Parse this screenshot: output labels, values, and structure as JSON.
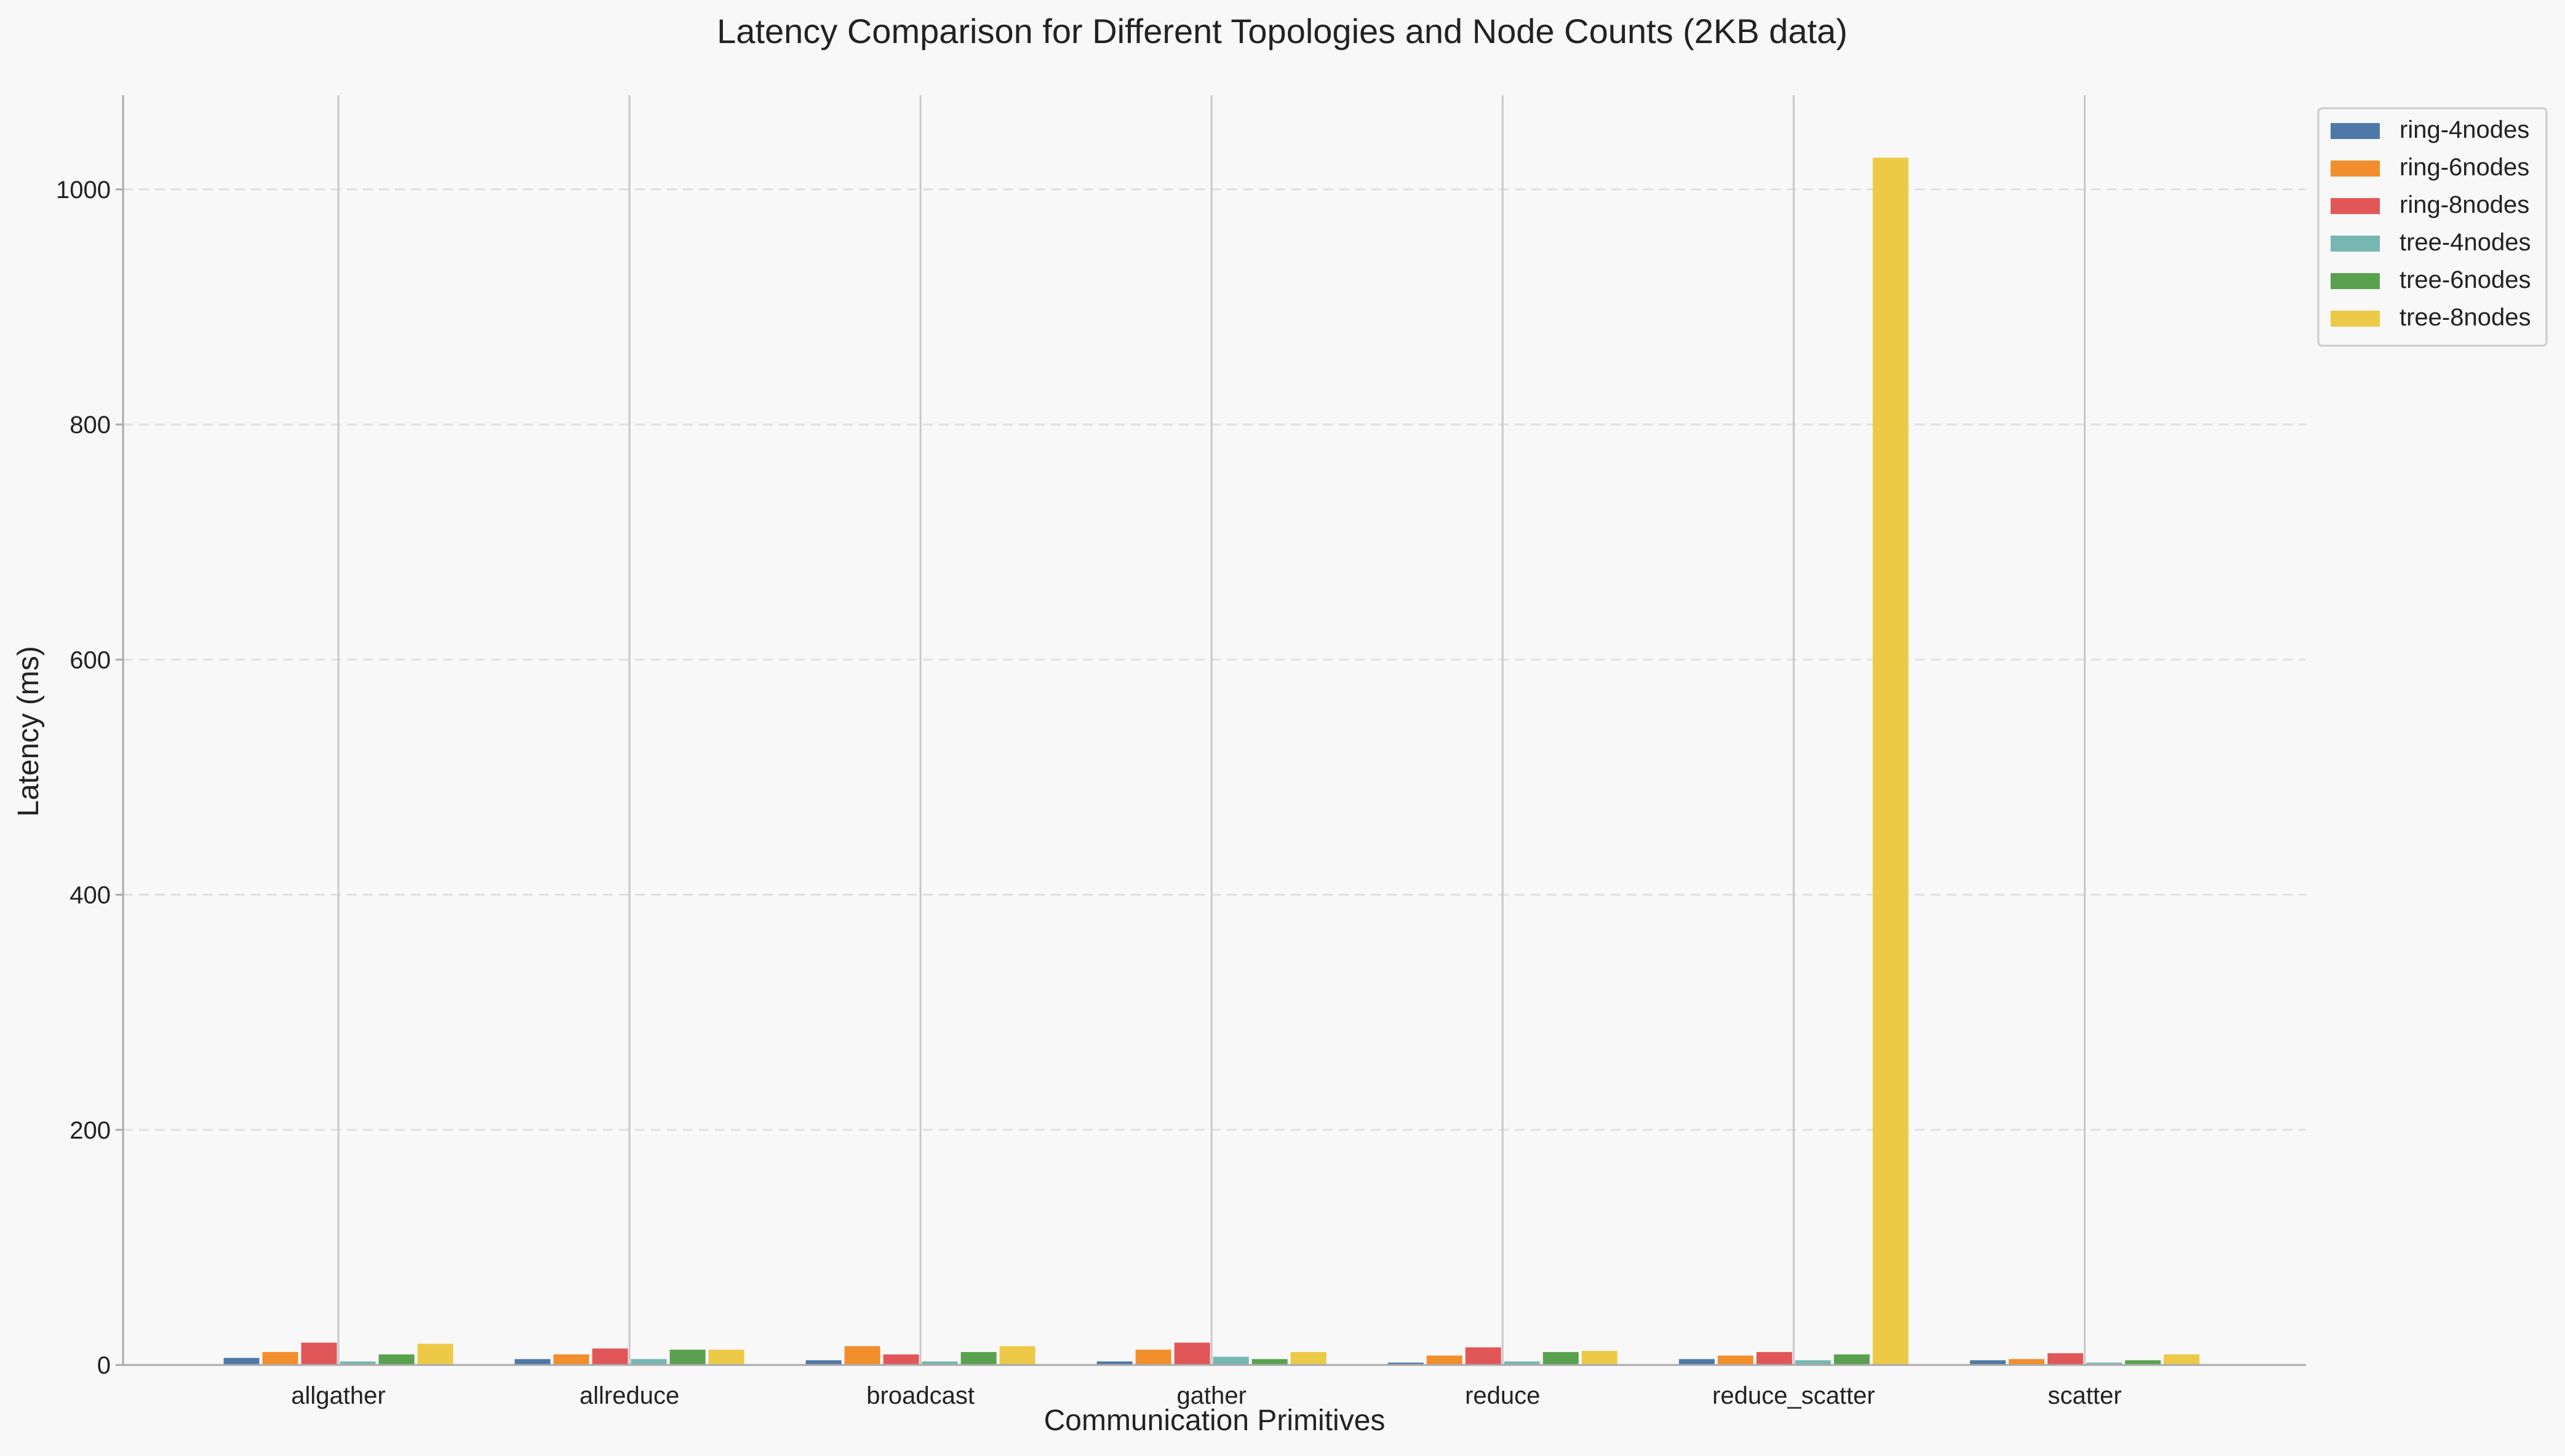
{
  "chart_data": {
    "type": "bar",
    "title": "Latency Comparison for Different Topologies and Node Counts (2KB data)",
    "xlabel": "Communication Primitives",
    "ylabel": "Latency (ms)",
    "categories": [
      "allgather",
      "allreduce",
      "broadcast",
      "gather",
      "reduce",
      "reduce_scatter",
      "scatter"
    ],
    "ylim": [
      0,
      1080
    ],
    "yticks": [
      0,
      200,
      400,
      600,
      800,
      1000
    ],
    "grid": "y-dashed",
    "legend_position": "top-right",
    "series": [
      {
        "name": "ring-4nodes",
        "color": "#4e79a7",
        "values": [
          6,
          5,
          4,
          3,
          2,
          5,
          4
        ]
      },
      {
        "name": "ring-6nodes",
        "color": "#f28e2b",
        "values": [
          11,
          9,
          16,
          13,
          8,
          8,
          5
        ]
      },
      {
        "name": "ring-8nodes",
        "color": "#e15759",
        "values": [
          19,
          14,
          9,
          19,
          15,
          11,
          10
        ]
      },
      {
        "name": "tree-4nodes",
        "color": "#76b7b2",
        "values": [
          3,
          5,
          3,
          7,
          3,
          4,
          2
        ]
      },
      {
        "name": "tree-6nodes",
        "color": "#59a14f",
        "values": [
          9,
          13,
          11,
          5,
          11,
          9,
          4
        ]
      },
      {
        "name": "tree-8nodes",
        "color": "#edc948",
        "values": [
          18,
          13,
          16,
          11,
          12,
          1027,
          9
        ]
      }
    ]
  }
}
